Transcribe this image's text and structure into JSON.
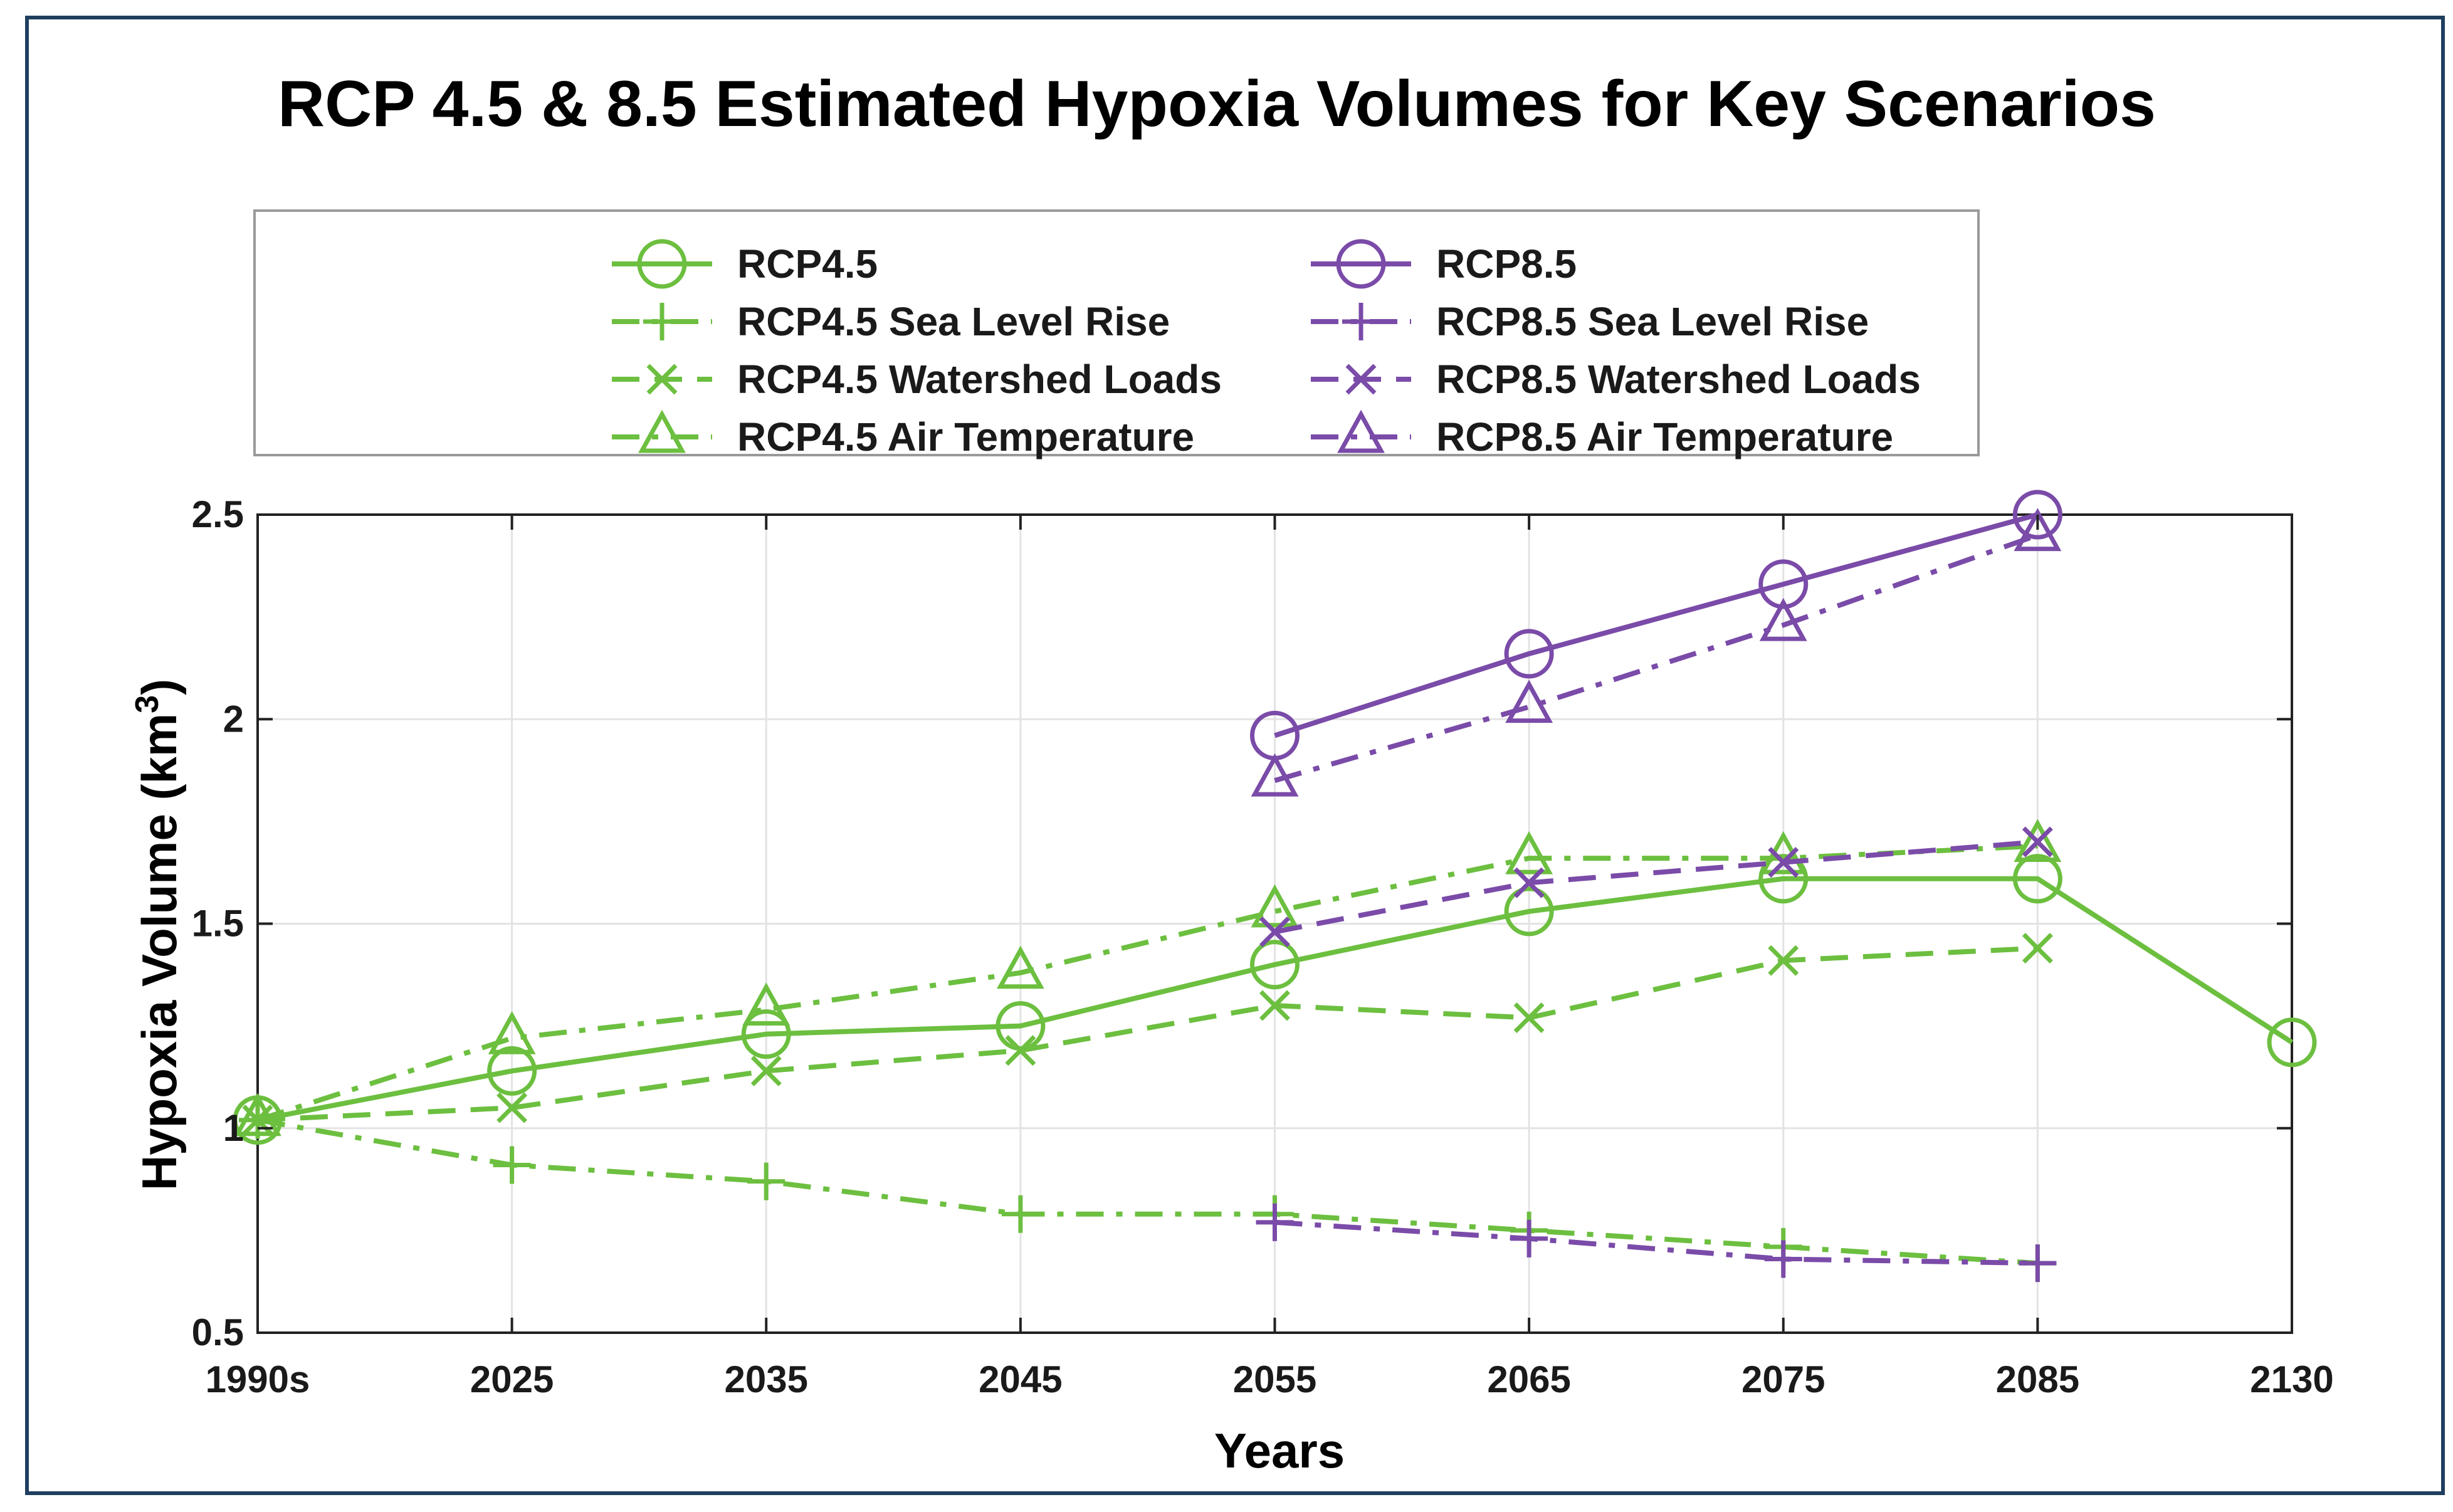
{
  "chart_data": {
    "type": "line",
    "title": "RCP 4.5 & 8.5 Estimated Hypoxia Volumes for Key Scenarios",
    "xlabel": "Years",
    "ylabel": "Hypoxia Volume (km³)",
    "ylabel_base": "Hypoxia Volume (km",
    "ylabel_sup": "3",
    "ylabel_end": ")",
    "categories": [
      "1990s",
      "2025",
      "2035",
      "2045",
      "2055",
      "2065",
      "2075",
      "2085",
      "2130"
    ],
    "ylim": [
      0.5,
      2.5
    ],
    "yticks": [
      0.5,
      1,
      1.5,
      2,
      2.5
    ],
    "ytick_labels": [
      "0.5",
      "1",
      "1.5",
      "2",
      "2.5"
    ],
    "grid": true,
    "legend_position": "top-outside",
    "series": [
      {
        "name": "RCP4.5",
        "color": "#6cbf3f",
        "dash": "solid",
        "marker": "circle",
        "values": [
          1.02,
          1.14,
          1.23,
          1.25,
          1.4,
          1.53,
          1.61,
          1.61,
          1.21
        ]
      },
      {
        "name": "RCP4.5 Sea Level Rise",
        "color": "#6cbf3f",
        "dash": "dashdot",
        "marker": "plus",
        "values": [
          1.02,
          0.91,
          0.87,
          0.79,
          0.79,
          0.75,
          0.71,
          0.67,
          null
        ]
      },
      {
        "name": "RCP4.5 Watershed Loads",
        "color": "#6cbf3f",
        "dash": "dashed",
        "marker": "x",
        "values": [
          1.02,
          1.05,
          1.14,
          1.19,
          1.3,
          1.27,
          1.41,
          1.44,
          null
        ]
      },
      {
        "name": "RCP4.5 Air Temperature",
        "color": "#6cbf3f",
        "dash": "dashdot",
        "marker": "triangle",
        "values": [
          1.02,
          1.22,
          1.29,
          1.38,
          1.53,
          1.66,
          1.66,
          1.69,
          null
        ]
      },
      {
        "name": "RCP8.5",
        "color": "#7a4ba8",
        "dash": "solid",
        "marker": "circle",
        "values": [
          null,
          null,
          null,
          null,
          1.96,
          2.16,
          2.33,
          2.5,
          null
        ]
      },
      {
        "name": "RCP8.5 Sea Level Rise",
        "color": "#7a4ba8",
        "dash": "dashdot",
        "marker": "plus",
        "values": [
          null,
          null,
          null,
          null,
          0.77,
          0.73,
          0.68,
          0.67,
          null
        ]
      },
      {
        "name": "RCP8.5 Watershed Loads",
        "color": "#7a4ba8",
        "dash": "dashed",
        "marker": "x",
        "values": [
          null,
          null,
          null,
          null,
          1.48,
          1.6,
          1.65,
          1.7,
          null
        ]
      },
      {
        "name": "RCP8.5 Air Temperature",
        "color": "#7a4ba8",
        "dash": "dashdot",
        "marker": "triangle",
        "values": [
          null,
          null,
          null,
          null,
          1.85,
          2.03,
          2.23,
          2.45,
          null
        ]
      }
    ]
  }
}
